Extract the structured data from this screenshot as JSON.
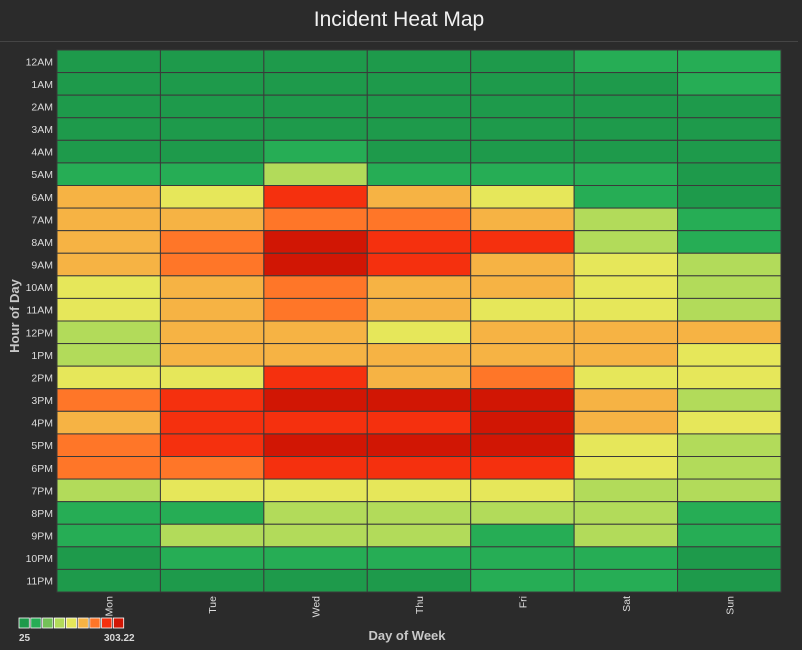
{
  "chart_data": {
    "type": "heatmap",
    "title": "Incident Heat Map",
    "xlabel": "Day of Week",
    "ylabel": "Hour of Day",
    "x": [
      "Mon",
      "Tue",
      "Wed",
      "Thu",
      "Fri",
      "Sat",
      "Sun"
    ],
    "y": [
      "12AM",
      "1AM",
      "2AM",
      "3AM",
      "4AM",
      "5AM",
      "6AM",
      "7AM",
      "8AM",
      "9AM",
      "10AM",
      "11AM",
      "12PM",
      "1PM",
      "2PM",
      "3PM",
      "4PM",
      "5PM",
      "6PM",
      "7PM",
      "8PM",
      "9PM",
      "10PM",
      "11PM"
    ],
    "color_scale": {
      "min": 25,
      "max": 303.22,
      "min_label": "25",
      "max_label": "303.22",
      "colors": [
        "#1e9a4b",
        "#26ad55",
        "#74c158",
        "#b2db5a",
        "#e6e75a",
        "#f6b344",
        "#ff7628",
        "#f5300e",
        "#d11604"
      ]
    },
    "values": [
      [
        50,
        50,
        50,
        50,
        50,
        85,
        85
      ],
      [
        30,
        30,
        30,
        30,
        30,
        50,
        85
      ],
      [
        30,
        30,
        30,
        30,
        30,
        50,
        50
      ],
      [
        30,
        30,
        30,
        50,
        30,
        30,
        30
      ],
      [
        30,
        50,
        85,
        50,
        30,
        50,
        50
      ],
      [
        85,
        85,
        120,
        85,
        85,
        85,
        50
      ],
      [
        190,
        155,
        260,
        190,
        155,
        85,
        50
      ],
      [
        190,
        190,
        225,
        225,
        190,
        120,
        85
      ],
      [
        190,
        225,
        295,
        260,
        260,
        120,
        85
      ],
      [
        190,
        225,
        295,
        260,
        190,
        155,
        120
      ],
      [
        155,
        190,
        225,
        190,
        190,
        155,
        120
      ],
      [
        155,
        190,
        225,
        190,
        155,
        155,
        120
      ],
      [
        120,
        190,
        190,
        155,
        190,
        190,
        190
      ],
      [
        120,
        190,
        190,
        190,
        190,
        190,
        155
      ],
      [
        155,
        155,
        260,
        190,
        225,
        155,
        155
      ],
      [
        225,
        260,
        295,
        295,
        295,
        190,
        120
      ],
      [
        190,
        260,
        260,
        260,
        295,
        190,
        155
      ],
      [
        225,
        260,
        295,
        295,
        295,
        155,
        120
      ],
      [
        225,
        225,
        260,
        260,
        260,
        155,
        120
      ],
      [
        120,
        155,
        155,
        155,
        155,
        120,
        120
      ],
      [
        85,
        85,
        120,
        120,
        120,
        120,
        85
      ],
      [
        85,
        120,
        120,
        120,
        85,
        120,
        85
      ],
      [
        50,
        85,
        85,
        85,
        85,
        85,
        50
      ],
      [
        50,
        50,
        50,
        50,
        85,
        85,
        50
      ]
    ],
    "grid": true,
    "legend": "bottom-left"
  }
}
